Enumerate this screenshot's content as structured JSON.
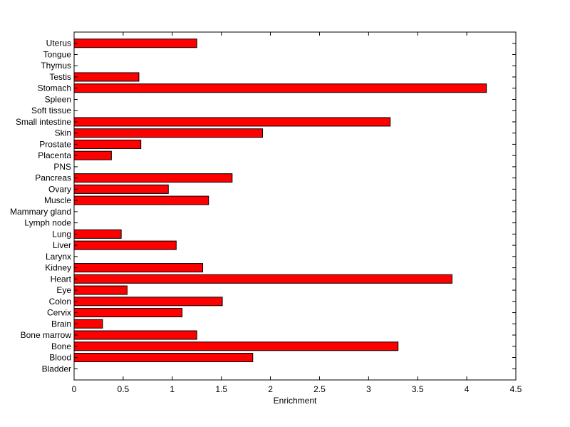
{
  "chart_data": {
    "type": "bar",
    "orientation": "horizontal",
    "title": "",
    "xlabel": "Enrichment",
    "ylabel": "",
    "xlim": [
      0,
      4.5
    ],
    "xticks": [
      0,
      0.5,
      1,
      1.5,
      2,
      2.5,
      3,
      3.5,
      4,
      4.5
    ],
    "xtick_labels": [
      "0",
      "0.5",
      "1",
      "1.5",
      "2",
      "2.5",
      "3",
      "3.5",
      "4",
      "4.5"
    ],
    "grid": false,
    "bar_color": "#ff0000",
    "categories": [
      "Uterus",
      "Tongue",
      "Thymus",
      "Testis",
      "Stomach",
      "Spleen",
      "Soft tissue",
      "Small intestine",
      "Skin",
      "Prostate",
      "Placenta",
      "PNS",
      "Pancreas",
      "Ovary",
      "Muscle",
      "Mammary gland",
      "Lymph node",
      "Lung",
      "Liver",
      "Larynx",
      "Kidney",
      "Heart",
      "Eye",
      "Colon",
      "Cervix",
      "Brain",
      "Bone marrow",
      "Bone",
      "Blood",
      "Bladder"
    ],
    "values": [
      1.25,
      0,
      0,
      0.66,
      4.2,
      0,
      0,
      3.22,
      1.92,
      0.68,
      0.38,
      0,
      1.61,
      0.96,
      1.37,
      0,
      0,
      0.48,
      1.04,
      0,
      1.31,
      3.85,
      0.54,
      1.51,
      1.1,
      0.29,
      1.25,
      3.3,
      1.82,
      0
    ]
  }
}
